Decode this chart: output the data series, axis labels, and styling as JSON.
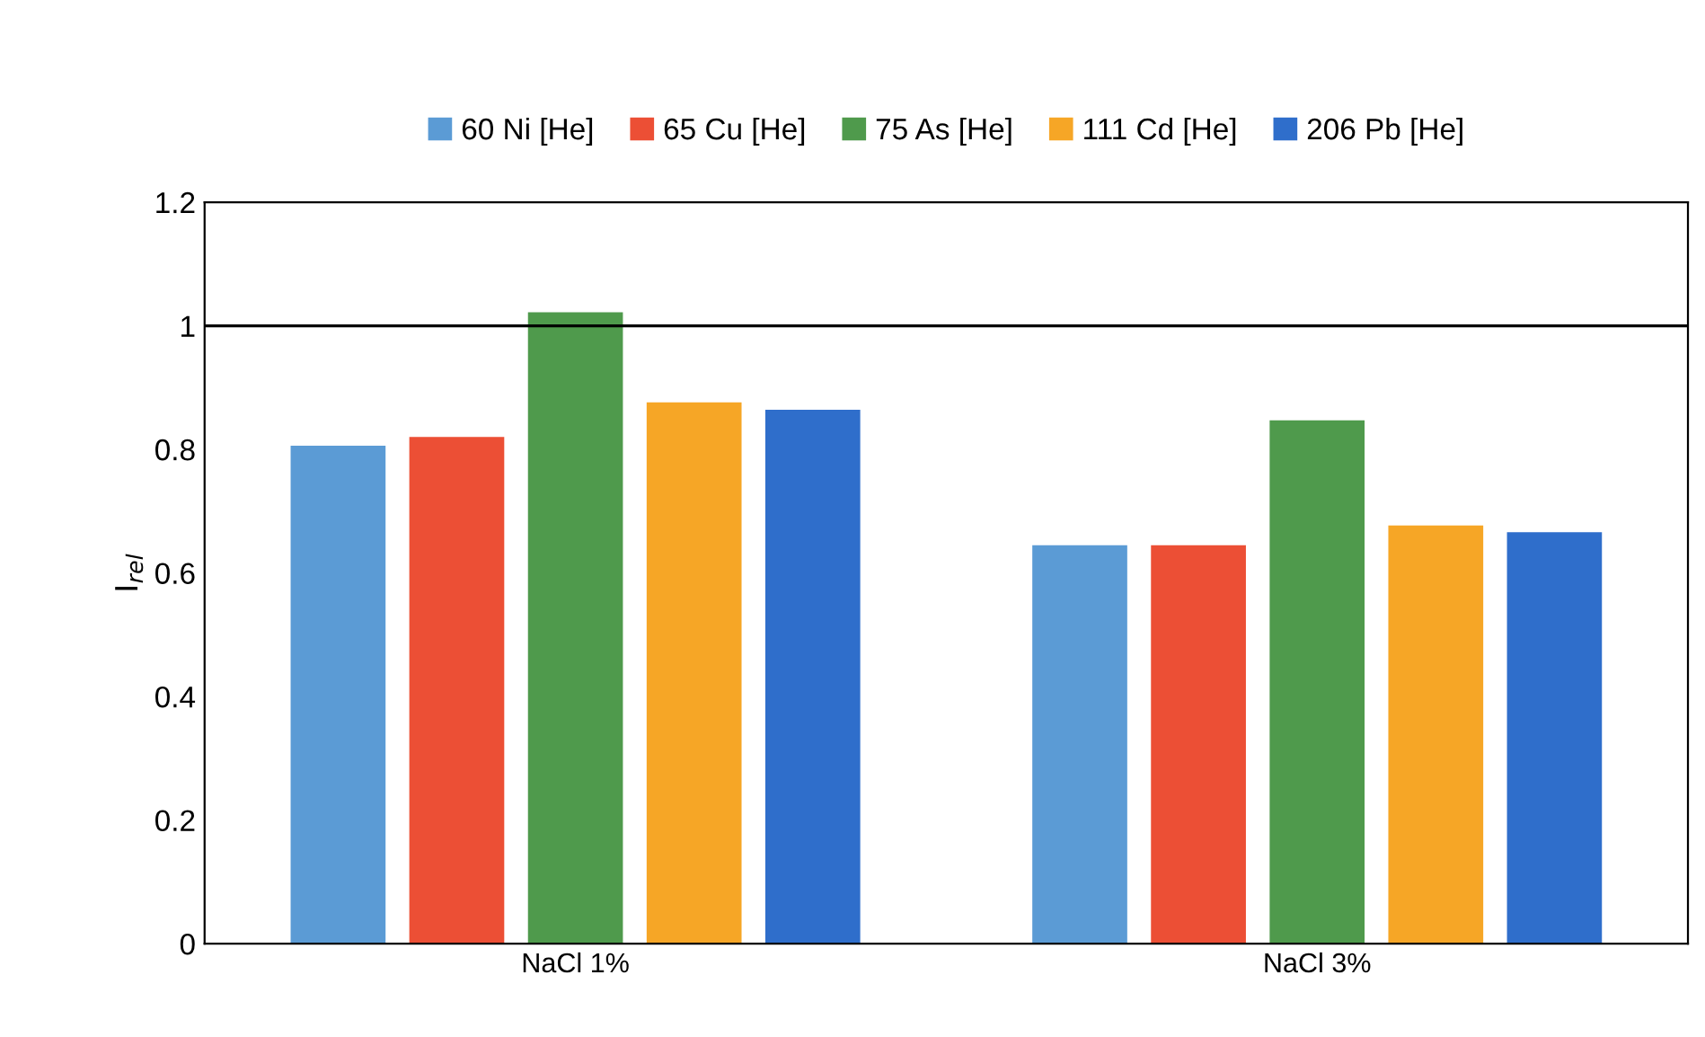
{
  "chart_data": {
    "type": "bar",
    "ylabel": "I$_{rel}$",
    "categories": [
      "NaCl 1%",
      "NaCl 3%"
    ],
    "series": [
      {
        "name": "60 Ni [He]",
        "color": "#5b9bd5",
        "values": [
          0.806,
          0.645
        ]
      },
      {
        "name": "65 Cu [He]",
        "color": "#ec4f35",
        "values": [
          0.82,
          0.645
        ]
      },
      {
        "name": "75 As [He]",
        "color": "#4f9a4c",
        "values": [
          1.022,
          0.847
        ]
      },
      {
        "name": "111 Cd [He]",
        "color": "#f6a626",
        "values": [
          0.876,
          0.677
        ]
      },
      {
        "name": "206 Pb [He]",
        "color": "#2f6ecb",
        "values": [
          0.864,
          0.666
        ]
      }
    ],
    "ylim": [
      0,
      1.2
    ],
    "yticks": [
      0,
      0.2,
      0.4,
      0.6,
      0.8,
      1,
      1.2
    ],
    "ref_lines": [
      {
        "axis": "y",
        "value": 1,
        "color": "#000000"
      }
    ],
    "legend": "top",
    "grid": false
  }
}
